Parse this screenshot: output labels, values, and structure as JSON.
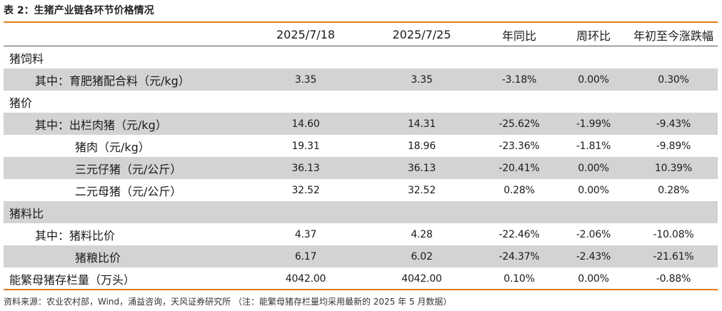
{
  "title": "表 2：生猪产业链各环节价格情况",
  "columns": [
    "",
    "2025/7/18",
    "2025/7/25",
    "年同比",
    "周环比",
    "年初至今涨跌幅"
  ],
  "rows": [
    {
      "label": "猪饲料",
      "indent": 0,
      "shade": false,
      "values": [
        "",
        "",
        "",
        "",
        ""
      ]
    },
    {
      "label": "其中：育肥猪配合料（元/kg）",
      "indent": 1,
      "shade": true,
      "values": [
        "3.35",
        "3.35",
        "-3.18%",
        "0.00%",
        "0.30%"
      ]
    },
    {
      "label": "猪价",
      "indent": 0,
      "shade": false,
      "values": [
        "",
        "",
        "",
        "",
        ""
      ]
    },
    {
      "label": "其中：出栏肉猪（元/kg）",
      "indent": 1,
      "shade": true,
      "values": [
        "14.60",
        "14.31",
        "-25.62%",
        "-1.99%",
        "-9.43%"
      ]
    },
    {
      "label": "猪肉（元/kg）",
      "indent": 2,
      "shade": false,
      "values": [
        "19.31",
        "18.96",
        "-23.36%",
        "-1.81%",
        "-9.89%"
      ]
    },
    {
      "label": "三元仔猪（元/公斤）",
      "indent": 2,
      "shade": true,
      "values": [
        "36.13",
        "36.13",
        "-20.41%",
        "0.00%",
        "10.39%"
      ]
    },
    {
      "label": "二元母猪（元/公斤）",
      "indent": 2,
      "shade": false,
      "values": [
        "32.52",
        "32.52",
        "0.28%",
        "0.00%",
        "0.28%"
      ]
    },
    {
      "label": "猪料比",
      "indent": 0,
      "shade": true,
      "values": [
        "",
        "",
        "",
        "",
        ""
      ]
    },
    {
      "label": "其中：猪料比价",
      "indent": 1,
      "shade": false,
      "values": [
        "4.37",
        "4.28",
        "-22.46%",
        "-2.06%",
        "-10.08%"
      ]
    },
    {
      "label": "猪粮比价",
      "indent": 2,
      "shade": true,
      "values": [
        "6.17",
        "6.02",
        "-24.37%",
        "-2.43%",
        "-21.61%"
      ]
    },
    {
      "label": "能繁母猪存栏量（万头）",
      "indent": 0,
      "shade": false,
      "values": [
        "4042.00",
        "4042.00",
        "0.10%",
        "0.00%",
        "-0.88%"
      ]
    }
  ],
  "source": "资料来源：农业农村部，Wind，涌益咨询，天风证券研究所 （注：能繁母猪存栏量均采用最新的 2025 年 5 月数据）",
  "colors": {
    "rule": "#e07b1a",
    "shade": "#d3d3d3"
  }
}
